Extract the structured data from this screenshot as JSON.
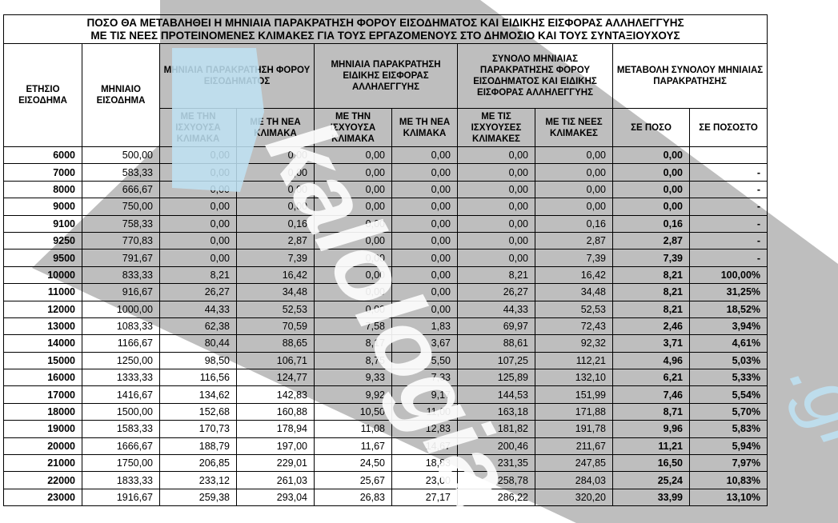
{
  "title_line1": "ΠΟΣΟ ΘΑ ΜΕΤΑΒΛΗΘΕΙ Η ΜΗΝΙΑΙΑ ΠΑΡΑΚΡΑΤΗΣΗ ΦΟΡΟΥ ΕΙΣΟΔΗΜΑΤΟΣ ΚΑΙ ΕΙΔΙΚΗΣ ΕΙΣΦΟΡΑΣ ΑΛΛΗΛΕΓΓΥΗΣ",
  "title_line2": "ΜΕ ΤΙΣ ΝΕΕΣ ΠΡΟΤΕΙΝΟΜΕΝΕΣ ΚΛΙΜΑΚΕΣ ΓΙΑ ΤΟΥΣ ΕΡΓΑΖΟΜΕΝΟΥΣ ΣΤΟ ΔΗΜΟΣΙΟ ΚΑΙ ΤΟΥΣ ΣΥΝΤΑΞΙΟΥΧΟΥΣ",
  "headers": {
    "annual": "ΕΤΗΣΙΟ ΕΙΣΟΔΗΜΑ",
    "monthly": "ΜΗΝΙΑΙΟ ΕΙΣΟΔΗΜΑ",
    "tax_group": "ΜΗΝΙΑΙΑ ΠΑΡΑΚΡΑΤΗΣΗ ΦΟΡΟΥ ΕΙΣΟΔΗΜΑΤΟΣ",
    "levy_group": "ΜΗΝΙΑΙΑ ΠΑΡΑΚΡΑΤΗΣΗ ΕΙΔΙΚΗΣ ΕΙΣΦΟΡΑΣ ΑΛΛΗΛΕΓΓΥΗΣ",
    "total_group": "ΣΥΝΟΛΟ ΜΗΝΙΑΙΑΣ ΠΑΡΑΚΡΑΤΗΣΗΣ ΦΟΡΟΥ ΕΙΣΟΔΗΜΑΤΟΣ ΚΑΙ ΕΙΔΙΚΗΣ ΕΙΣΦΟΡΑΣ ΑΛΛΗΛΕΓΓΥΗΣ",
    "change_group": "ΜΕΤΑΒΟΛΗ ΣΥΝΟΛΟΥ ΜΗΝΙΑΙΑΣ ΠΑΡΑΚΡΑΤΗΣΗΣ",
    "sub": [
      "ΜΕ ΤΗΝ ΙΣΧΥΟΥΣΑ ΚΛΙΜΑΚΑ",
      "ΜΕ ΤΗ ΝΕΑ ΚΛΙΜΑΚΑ",
      "ΜΕ ΤΗΝ ΙΣΧΥΟΥΣΑ ΚΛΙΜΑΚΑ",
      "ΜΕ ΤΗ ΝΕΑ ΚΛΙΜΑΚΑ",
      "ΜΕ ΤΙΣ ΙΣΧΥΟΥΣΕΣ ΚΛΙΜΑΚΕΣ",
      "ΜΕ ΤΙΣ ΝΕΕΣ ΚΛΙΜΑΚΕΣ",
      "ΣΕ ΠΟΣΟ",
      "ΣΕ ΠΟΣΟΣΤΟ"
    ]
  },
  "rows": [
    [
      "6000",
      "500,00",
      "0,00",
      "0,00",
      "0,00",
      "0,00",
      "0,00",
      "0,00",
      "0,00",
      ""
    ],
    [
      "7000",
      "583,33",
      "0,00",
      "0,00",
      "0,00",
      "0,00",
      "0,00",
      "0,00",
      "0,00",
      "-"
    ],
    [
      "8000",
      "666,67",
      "0,00",
      "0,00",
      "0,00",
      "0,00",
      "0,00",
      "0,00",
      "0,00",
      "-"
    ],
    [
      "9000",
      "750,00",
      "0,00",
      "0,00",
      "0,00",
      "0,00",
      "0,00",
      "0,00",
      "0,00",
      "-"
    ],
    [
      "9100",
      "758,33",
      "0,00",
      "0,16",
      "0,00",
      "0,00",
      "0,00",
      "0,16",
      "0,16",
      "-"
    ],
    [
      "9250",
      "770,83",
      "0,00",
      "2,87",
      "0,00",
      "0,00",
      "0,00",
      "2,87",
      "2,87",
      "-"
    ],
    [
      "9500",
      "791,67",
      "0,00",
      "7,39",
      "0,00",
      "0,00",
      "0,00",
      "7,39",
      "7,39",
      "-"
    ],
    [
      "10000",
      "833,33",
      "8,21",
      "16,42",
      "0,00",
      "0,00",
      "8,21",
      "16,42",
      "8,21",
      "100,00%"
    ],
    [
      "11000",
      "916,67",
      "26,27",
      "34,48",
      "0,00",
      "0,00",
      "26,27",
      "34,48",
      "8,21",
      "31,25%"
    ],
    [
      "12000",
      "1000,00",
      "44,33",
      "52,53",
      "0,00",
      "0,00",
      "44,33",
      "52,53",
      "8,21",
      "18,52%"
    ],
    [
      "13000",
      "1083,33",
      "62,38",
      "70,59",
      "7,58",
      "1,83",
      "69,97",
      "72,43",
      "2,46",
      "3,94%"
    ],
    [
      "14000",
      "1166,67",
      "80,44",
      "88,65",
      "8,17",
      "3,67",
      "88,61",
      "92,32",
      "3,71",
      "4,61%"
    ],
    [
      "15000",
      "1250,00",
      "98,50",
      "106,71",
      "8,75",
      "5,50",
      "107,25",
      "112,21",
      "4,96",
      "5,03%"
    ],
    [
      "16000",
      "1333,33",
      "116,56",
      "124,77",
      "9,33",
      "7,33",
      "125,89",
      "132,10",
      "6,21",
      "5,33%"
    ],
    [
      "17000",
      "1416,67",
      "134,62",
      "142,83",
      "9,92",
      "9,17",
      "144,53",
      "151,99",
      "7,46",
      "5,54%"
    ],
    [
      "18000",
      "1500,00",
      "152,68",
      "160,88",
      "10,50",
      "11,00",
      "163,18",
      "171,88",
      "8,71",
      "5,70%"
    ],
    [
      "19000",
      "1583,33",
      "170,73",
      "178,94",
      "11,08",
      "12,83",
      "181,82",
      "191,78",
      "9,96",
      "5,83%"
    ],
    [
      "20000",
      "1666,67",
      "188,79",
      "197,00",
      "11,67",
      "14,67",
      "200,46",
      "211,67",
      "11,21",
      "5,94%"
    ],
    [
      "21000",
      "1750,00",
      "206,85",
      "229,01",
      "24,50",
      "18,83",
      "231,35",
      "247,85",
      "16,50",
      "7,97%"
    ],
    [
      "22000",
      "1833,33",
      "233,12",
      "261,03",
      "25,67",
      "23,00",
      "258,78",
      "284,03",
      "25,24",
      "10,83%"
    ],
    [
      "23000",
      "1916,67",
      "259,38",
      "293,04",
      "26,83",
      "27,17",
      "286,22",
      "320,20",
      "33,99",
      "13,10%"
    ]
  ],
  "watermark": {
    "text": "kalologia",
    "suffix": ".gr",
    "band_color": "#a8a8a8",
    "logo_color": "#bfe3f5"
  }
}
